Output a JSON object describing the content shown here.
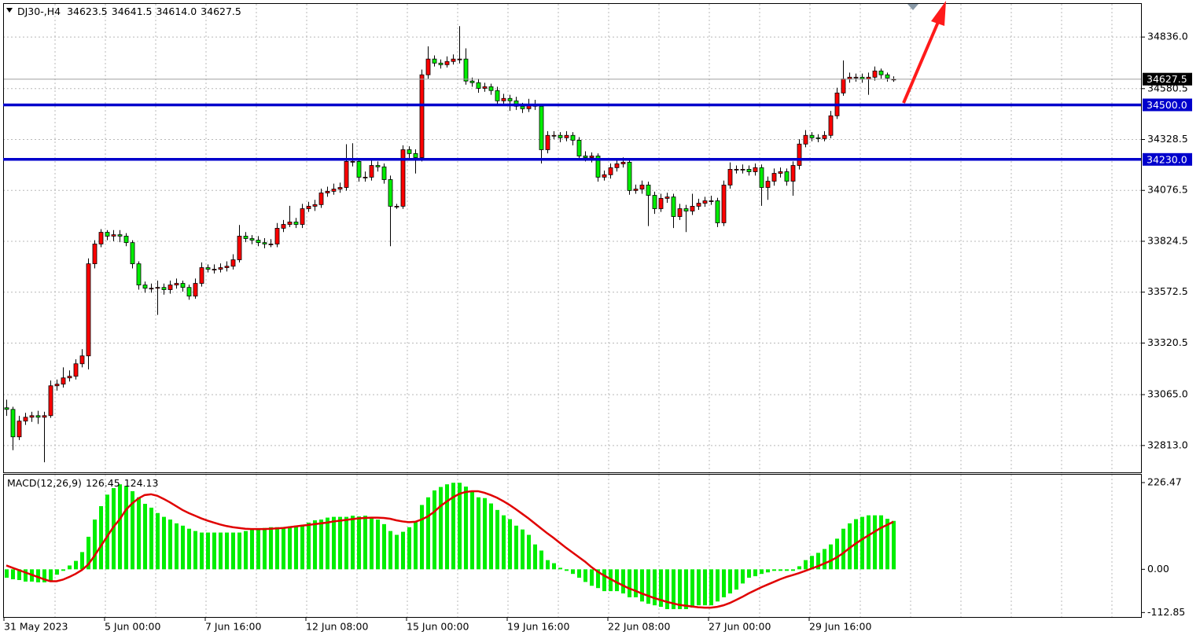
{
  "chart_data": [
    {
      "type": "candlestick",
      "title": "DJ30-,H4",
      "title_values": [
        "34623.5",
        "34641.5",
        "34614.0",
        "34627.5"
      ],
      "open": [
        33000,
        32992,
        32856,
        32934,
        32953,
        32961,
        32953,
        32961,
        33109,
        33117,
        33148,
        33156,
        33218,
        33257,
        33713,
        33811,
        33869,
        33850,
        33857,
        33850,
        33818,
        33713,
        33608,
        33592,
        33592,
        33596,
        33585,
        33608,
        33616,
        33596,
        33553,
        33616,
        33694,
        33686,
        33686,
        33694,
        33701,
        33733,
        33850,
        33838,
        33830,
        33818,
        33811,
        33811,
        33889,
        33908,
        33920,
        33908,
        33986,
        33998,
        34006,
        34064,
        34072,
        34083,
        34091,
        34220,
        34220,
        34142,
        34142,
        34200,
        34193,
        34130,
        33998,
        33998,
        34278,
        34259,
        34239,
        34649,
        34727,
        34707,
        34699,
        34715,
        34727,
        34727,
        34618,
        34610,
        34582,
        34590,
        34571,
        34520,
        34532,
        34520,
        34493,
        34481,
        34504,
        34493,
        34278,
        34349,
        34349,
        34337,
        34349,
        34325,
        34247,
        34239,
        34247,
        34142,
        34154,
        34189,
        34208,
        34216,
        34076,
        34083,
        34103,
        34052,
        33986,
        34037,
        34044,
        33947,
        33986,
        33974,
        33998,
        34013,
        34025,
        34025,
        33916,
        34103,
        34181,
        34181,
        34181,
        34169,
        34189,
        34091,
        34122,
        34161,
        34169,
        34122,
        34200,
        34306,
        34349,
        34337,
        34333,
        34349,
        34446,
        34559,
        34629,
        34637,
        34637,
        34629,
        34637,
        34668,
        34649,
        34623.5
      ],
      "high": [
        33040,
        33005,
        32960,
        32975,
        32980,
        32985,
        32980,
        33135,
        33140,
        33200,
        33185,
        33240,
        33290,
        33740,
        33830,
        33885,
        33880,
        33880,
        33880,
        33865,
        33830,
        33725,
        33625,
        33615,
        33630,
        33615,
        33630,
        33640,
        33630,
        33610,
        33640,
        33720,
        33710,
        33710,
        33715,
        33725,
        33760,
        33905,
        33870,
        33855,
        33850,
        33840,
        33835,
        33915,
        33930,
        34000,
        33940,
        34010,
        34020,
        34030,
        34085,
        34095,
        34110,
        34115,
        34305,
        34310,
        34235,
        34170,
        34225,
        34220,
        34210,
        34150,
        34010,
        34300,
        34295,
        34280,
        34675,
        34790,
        34745,
        34725,
        34740,
        34750,
        34890,
        34780,
        34635,
        34630,
        34610,
        34605,
        34590,
        34555,
        34550,
        34540,
        34510,
        34530,
        34525,
        34505,
        34370,
        34370,
        34365,
        34370,
        34365,
        34340,
        34270,
        34265,
        34260,
        34175,
        34210,
        34230,
        34240,
        34230,
        34105,
        34125,
        34120,
        34070,
        34060,
        34065,
        34060,
        34010,
        34005,
        34060,
        34035,
        34045,
        34050,
        34040,
        34125,
        34215,
        34200,
        34205,
        34200,
        34210,
        34205,
        34145,
        34185,
        34190,
        34185,
        34220,
        34330,
        34375,
        34365,
        34355,
        34370,
        34470,
        34585,
        34720,
        34660,
        34655,
        34655,
        34660,
        34690,
        34680,
        34660,
        34641.5
      ],
      "low": [
        32960,
        32790,
        32840,
        32915,
        32930,
        32920,
        32730,
        32950,
        33085,
        33100,
        33130,
        33140,
        33200,
        33190,
        33690,
        33795,
        33830,
        33825,
        33820,
        33800,
        33690,
        33585,
        33570,
        33570,
        33460,
        33560,
        33565,
        33590,
        33575,
        33535,
        33540,
        33600,
        33670,
        33665,
        33670,
        33675,
        33685,
        33720,
        33820,
        33810,
        33800,
        33790,
        33795,
        33795,
        33870,
        33895,
        33890,
        33890,
        33970,
        33975,
        33990,
        34045,
        34055,
        34065,
        34075,
        34195,
        34120,
        34120,
        34125,
        34170,
        34110,
        33800,
        33985,
        33985,
        34235,
        34160,
        34220,
        34630,
        34690,
        34680,
        34685,
        34700,
        34705,
        34600,
        34590,
        34560,
        34565,
        34550,
        34500,
        34505,
        34470,
        34475,
        34460,
        34465,
        34475,
        34210,
        34260,
        34330,
        34315,
        34320,
        34300,
        34225,
        34220,
        34215,
        34120,
        34125,
        34135,
        34170,
        34190,
        34055,
        34060,
        34060,
        33900,
        33960,
        33970,
        34015,
        33890,
        33930,
        33870,
        33955,
        33980,
        33995,
        34005,
        33895,
        33900,
        34085,
        34160,
        34160,
        34150,
        34150,
        34000,
        34030,
        34100,
        34140,
        34100,
        34050,
        34180,
        34290,
        34320,
        34315,
        34320,
        34335,
        34430,
        34545,
        34610,
        34615,
        34610,
        34550,
        34620,
        34630,
        34615,
        34614
      ],
      "close": [
        32992,
        32856,
        32934,
        32953,
        32961,
        32953,
        32961,
        33109,
        33117,
        33148,
        33156,
        33218,
        33257,
        33713,
        33811,
        33869,
        33850,
        33857,
        33850,
        33818,
        33713,
        33608,
        33592,
        33592,
        33596,
        33585,
        33608,
        33616,
        33596,
        33553,
        33616,
        33694,
        33686,
        33686,
        33694,
        33701,
        33733,
        33850,
        33838,
        33830,
        33818,
        33811,
        33811,
        33889,
        33908,
        33920,
        33908,
        33986,
        33998,
        34006,
        34064,
        34072,
        34083,
        34091,
        34220,
        34220,
        34142,
        34142,
        34200,
        34193,
        34130,
        33998,
        33998,
        34278,
        34259,
        34239,
        34649,
        34727,
        34707,
        34699,
        34715,
        34727,
        34727,
        34618,
        34610,
        34582,
        34590,
        34571,
        34520,
        34532,
        34520,
        34493,
        34481,
        34504,
        34493,
        34278,
        34349,
        34349,
        34337,
        34349,
        34325,
        34247,
        34239,
        34247,
        34142,
        34154,
        34189,
        34208,
        34216,
        34076,
        34083,
        34103,
        34052,
        33986,
        34037,
        34044,
        33947,
        33986,
        33974,
        33998,
        34013,
        34025,
        34025,
        33916,
        34103,
        34181,
        34181,
        34181,
        34169,
        34189,
        34091,
        34122,
        34161,
        34169,
        34122,
        34200,
        34306,
        34349,
        34337,
        34333,
        34349,
        34446,
        34559,
        34629,
        34637,
        34637,
        34629,
        34637,
        34668,
        34649,
        34633,
        34627.5
      ],
      "up_color": "#ff0000",
      "down_color": "#00ee00",
      "ylim": [
        32680,
        35000
      ],
      "yticks": [
        {
          "value": 34836,
          "label": "34836.0"
        },
        34580.5,
        34328.5,
        34076.5,
        33824.5,
        33572.5,
        33320.5,
        {
          "value": 33065,
          "label": "33065.0"
        },
        {
          "value": 32813,
          "label": "32813.0"
        }
      ],
      "grid": true,
      "hlines": [
        {
          "value": 34500,
          "label": "34500.0",
          "color": "#0000cc"
        },
        {
          "value": 34230,
          "label": "34230.0",
          "color": "#0000cc"
        }
      ],
      "last_price": 34627.5
    },
    {
      "type": "macd",
      "title": "MACD(12,26,9)",
      "title_values": [
        "126.45",
        "124.13"
      ],
      "categories": [
        "31 May 2023",
        null,
        null,
        null,
        null,
        null,
        null,
        null,
        null,
        null,
        null,
        null,
        null,
        null,
        null,
        null,
        "5 Jun 00:00",
        null,
        null,
        null,
        null,
        null,
        null,
        null,
        null,
        null,
        null,
        null,
        null,
        null,
        null,
        null,
        "7 Jun 16:00",
        null,
        null,
        null,
        null,
        null,
        null,
        null,
        null,
        null,
        null,
        null,
        null,
        null,
        null,
        null,
        "12 Jun 08:00",
        null,
        null,
        null,
        null,
        null,
        null,
        null,
        null,
        null,
        null,
        null,
        null,
        null,
        null,
        null,
        "15 Jun 00:00",
        null,
        null,
        null,
        null,
        null,
        null,
        null,
        null,
        null,
        null,
        null,
        null,
        null,
        null,
        null,
        "19 Jun 16:00",
        null,
        null,
        null,
        null,
        null,
        null,
        null,
        null,
        null,
        null,
        null,
        null,
        null,
        null,
        null,
        "22 Jun 08:00",
        null,
        null,
        null,
        null,
        null,
        null,
        null,
        null,
        null,
        null,
        null,
        null,
        null,
        null,
        null,
        "27 Jun 00:00",
        null,
        null,
        null,
        null,
        null,
        null,
        null,
        null,
        null,
        null,
        null,
        null,
        null,
        null,
        null,
        "29 Jun 16:00",
        null,
        null,
        null,
        null,
        null,
        null,
        null,
        null,
        null,
        null,
        null,
        null,
        null
      ],
      "histogram": [
        -22,
        -26,
        -28,
        -32,
        -32,
        -34,
        -34,
        -30,
        -14,
        -4,
        10,
        22,
        45,
        85,
        130,
        165,
        195,
        212,
        222,
        218,
        204,
        188,
        171,
        161,
        147,
        137,
        130,
        120,
        114,
        106,
        100,
        96,
        96,
        96,
        96,
        96,
        96,
        96,
        100,
        104,
        106,
        108,
        110,
        110,
        110,
        112,
        114,
        116,
        122,
        128,
        130,
        135,
        137,
        137,
        137,
        140,
        138,
        140,
        135,
        130,
        118,
        100,
        90,
        98,
        110,
        126,
        168,
        188,
        206,
        215,
        222,
        226,
        226,
        216,
        202,
        188,
        186,
        172,
        155,
        141,
        131,
        114,
        104,
        90,
        65,
        49,
        24,
        16,
        4,
        -4,
        -12,
        -22,
        -33,
        -43,
        -49,
        -57,
        -57,
        -57,
        -63,
        -73,
        -73,
        -84,
        -90,
        -94,
        -98,
        -104,
        -104,
        -104,
        -104,
        -100,
        -94,
        -94,
        -94,
        -84,
        -73,
        -63,
        -53,
        -37,
        -22,
        -18,
        -12,
        -8,
        -4,
        -4,
        -4,
        -4,
        8,
        24,
        35,
        43,
        53,
        65,
        80,
        106,
        120,
        131,
        137,
        141,
        141,
        141,
        132,
        126.45
      ],
      "signal": [
        10,
        4,
        -2,
        -8,
        -14,
        -20,
        -26,
        -31,
        -31,
        -27,
        -20,
        -12,
        -2,
        12,
        35,
        60,
        85,
        110,
        130,
        155,
        172,
        185,
        194,
        196,
        192,
        184,
        175,
        165,
        155,
        147,
        140,
        133,
        127,
        122,
        117,
        113,
        110,
        108,
        106,
        105,
        105,
        105,
        106,
        107,
        108,
        110,
        112,
        114,
        116,
        118,
        120,
        122,
        125,
        127,
        129,
        131,
        133,
        134,
        135,
        135,
        134,
        132,
        128,
        125,
        123,
        124,
        130,
        138,
        150,
        165,
        177,
        188,
        197,
        202,
        204,
        204,
        200,
        194,
        187,
        178,
        168,
        157,
        145,
        133,
        120,
        107,
        94,
        82,
        69,
        56,
        44,
        32,
        20,
        6,
        -6,
        -16,
        -25,
        -34,
        -42,
        -50,
        -56,
        -63,
        -69,
        -75,
        -80,
        -85,
        -89,
        -93,
        -95,
        -97,
        -99,
        -100,
        -100,
        -98,
        -94,
        -88,
        -80,
        -72,
        -63,
        -55,
        -47,
        -40,
        -33,
        -26,
        -20,
        -15,
        -10,
        -4,
        2,
        8,
        15,
        22,
        31,
        42,
        55,
        67,
        78,
        88,
        98,
        108,
        116,
        124.13
      ],
      "histogram_color": "#00ee00",
      "signal_color": "#e00000",
      "ylim": [
        -124.5,
        247
      ],
      "yticks": [
        226.47,
        {
          "value": 0,
          "label": "0.00"
        },
        -112.85
      ]
    }
  ]
}
